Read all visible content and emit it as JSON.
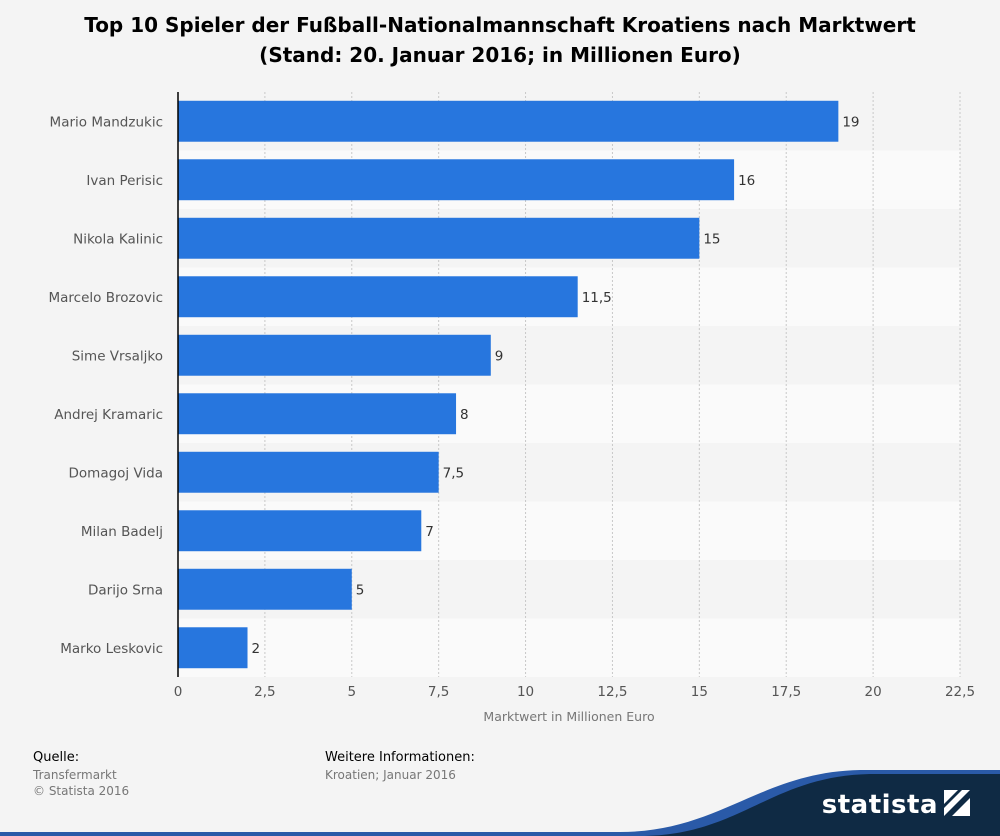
{
  "chart_data": {
    "type": "bar",
    "orientation": "horizontal",
    "title_line1": "Top 10 Spieler der Fußball-Nationalmannschaft Kroatiens nach Marktwert",
    "title_line2": "(Stand: 20. Januar 2016; in Millionen Euro)",
    "categories": [
      "Mario Mandzukic",
      "Ivan Perisic",
      "Nikola Kalinic",
      "Marcelo Brozovic",
      "Sime Vrsaljko",
      "Andrej Kramaric",
      "Domagoj Vida",
      "Milan Badelj",
      "Darijo Srna",
      "Marko Leskovic"
    ],
    "values": [
      19,
      16,
      15,
      11.5,
      9,
      8,
      7.5,
      7,
      5,
      2
    ],
    "value_labels": [
      "19",
      "16",
      "15",
      "11,5",
      "9",
      "8",
      "7,5",
      "7",
      "5",
      "2"
    ],
    "xlabel": "Marktwert in Millionen Euro",
    "xlim": [
      0,
      22.5
    ],
    "xticks": [
      0,
      2.5,
      5,
      7.5,
      10,
      12.5,
      15,
      17.5,
      20,
      22.5
    ],
    "xtick_labels": [
      "0",
      "2,5",
      "5",
      "7,5",
      "10",
      "12,5",
      "15",
      "17,5",
      "20",
      "22,5"
    ],
    "bar_color": "#2776de",
    "grid": true
  },
  "footer": {
    "source_heading": "Quelle:",
    "source_lines": [
      "Transfermarkt",
      "© Statista 2016"
    ],
    "info_heading": "Weitere Informationen:",
    "info_lines": [
      "Kroatien; Januar 2016"
    ]
  },
  "brand": {
    "name": "statista",
    "icon": "statista-logo-icon",
    "color": "#0f2a44"
  }
}
